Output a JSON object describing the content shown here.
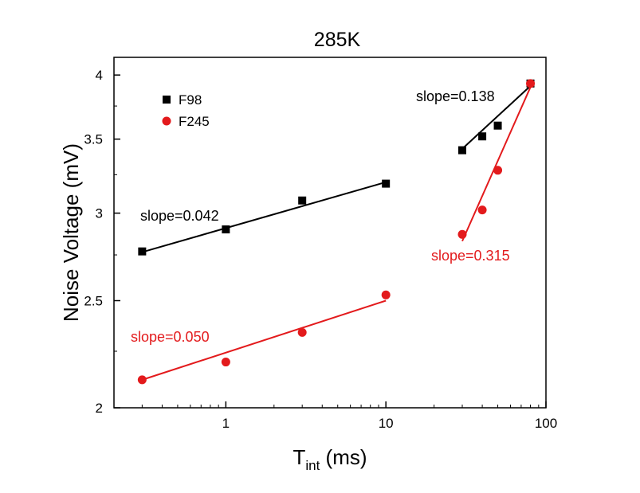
{
  "chart_data": {
    "type": "scatter",
    "title": "285K",
    "xlabel": {
      "main": "T",
      "sub": "int",
      "suffix": " (ms)"
    },
    "ylabel": "Noise Voltage (mV)",
    "xscale": "log",
    "yscale": "log",
    "xlim": [
      0.2,
      100
    ],
    "ylim": [
      2.0,
      4.15
    ],
    "x_ticks": [
      1,
      10,
      100
    ],
    "x_tick_labels": [
      "1",
      "10",
      "100"
    ],
    "y_ticks": [
      2,
      2.5,
      3,
      3.5,
      4
    ],
    "y_tick_labels": [
      "2",
      "2.5",
      "3",
      "3.5",
      "4"
    ],
    "grid": false,
    "legend": "top-left",
    "series": [
      {
        "name": "F98",
        "color": "#000000",
        "marker": "square",
        "x": [
          0.3,
          1,
          3,
          10,
          30,
          40,
          50,
          80
        ],
        "y": [
          2.77,
          2.9,
          3.08,
          3.19,
          3.42,
          3.52,
          3.6,
          3.93
        ]
      },
      {
        "name": "F245",
        "color": "#e31a1c",
        "marker": "circle",
        "x": [
          0.3,
          1,
          3,
          10,
          30,
          40,
          50,
          80
        ],
        "y": [
          2.12,
          2.2,
          2.34,
          2.53,
          2.87,
          3.02,
          3.28,
          3.93
        ]
      }
    ],
    "fits": [
      {
        "color": "#000000",
        "x": [
          0.3,
          10
        ],
        "y": [
          2.766,
          3.2
        ]
      },
      {
        "color": "#000000",
        "x": [
          30,
          80
        ],
        "y": [
          3.43,
          3.91
        ]
      },
      {
        "color": "#e31a1c",
        "x": [
          0.3,
          10
        ],
        "y": [
          2.12,
          2.5
        ]
      },
      {
        "color": "#e31a1c",
        "x": [
          30,
          80
        ],
        "y": [
          2.83,
          3.9
        ]
      }
    ],
    "annotations": [
      {
        "text": "slope=0.042",
        "color": "#000000"
      },
      {
        "text": "slope=0.050",
        "color": "#e31a1c"
      },
      {
        "text": "slope=0.138",
        "color": "#000000"
      },
      {
        "text": "slope=0.315",
        "color": "#e31a1c"
      }
    ]
  }
}
